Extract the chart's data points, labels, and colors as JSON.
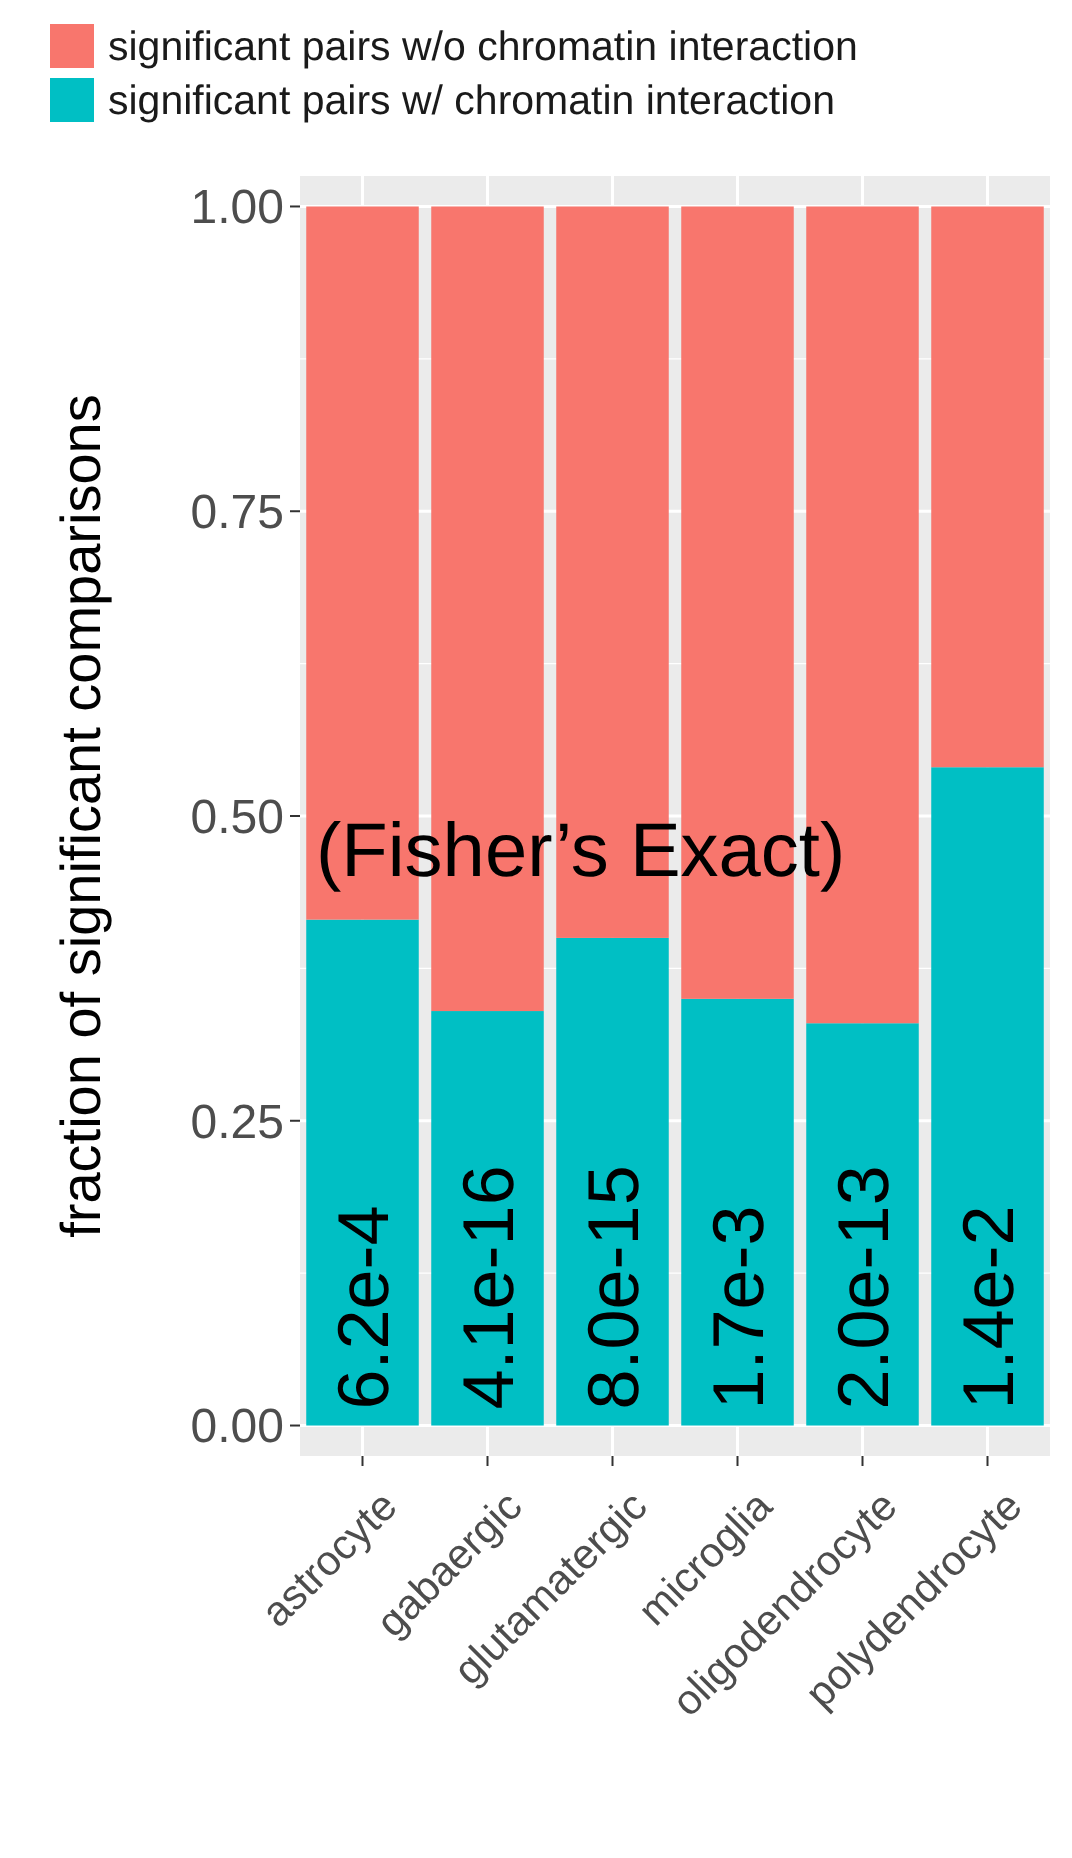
{
  "chart_data": {
    "type": "bar",
    "stacked": true,
    "ylabel": "fraction of significant comparisons",
    "categories": [
      "astrocyte",
      "gabaergic",
      "glutamatergic",
      "microglia",
      "oligodendrocyte",
      "polydendrocyte"
    ],
    "series": [
      {
        "name": "significant pairs w/ chromatin interaction",
        "color": "#00bfc4",
        "values": [
          0.415,
          0.34,
          0.4,
          0.35,
          0.33,
          0.54
        ]
      },
      {
        "name": "significant pairs w/o chromatin interaction",
        "color": "#f8766d",
        "values": [
          0.585,
          0.66,
          0.6,
          0.65,
          0.67,
          0.46
        ]
      }
    ],
    "ylim": [
      -0.025,
      1.025
    ],
    "yticks": [
      {
        "value": 0,
        "label": "0.00"
      },
      {
        "value": 0.25,
        "label": "0.25"
      },
      {
        "value": 0.5,
        "label": "0.50"
      },
      {
        "value": 0.75,
        "label": "0.75"
      },
      {
        "value": 1,
        "label": "1.00"
      }
    ],
    "grid": true,
    "legend": "top left",
    "annotations": [
      "(Fisher’s Exact)",
      {
        "text": "6.2e-4",
        "x": "astrocyte",
        "y": 0
      },
      {
        "text": "4.1e-16",
        "x": "gabaergic",
        "y": 0
      },
      {
        "text": "8.0e-15",
        "x": "glutamatergic",
        "y": 0
      },
      {
        "text": "1.7e-3",
        "x": "microglia",
        "y": 0
      },
      {
        "text": "2.0e-13",
        "x": "oligodendrocyte",
        "y": 0
      },
      {
        "text": "1.4e-2",
        "x": "polydendrocyte",
        "y": 0
      }
    ]
  }
}
